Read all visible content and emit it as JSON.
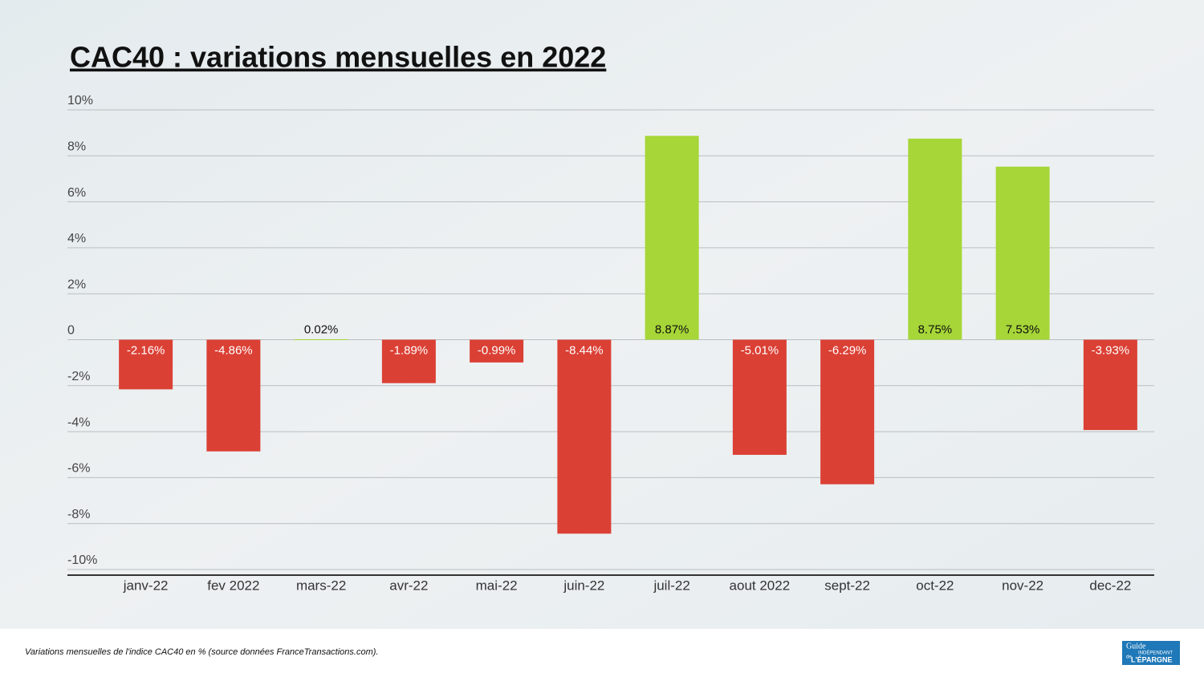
{
  "chart_data": {
    "type": "bar",
    "title": "CAC40 : variations mensuelles en 2022",
    "categories": [
      "janv-22",
      "fev 2022",
      "mars-22",
      "avr-22",
      "mai-22",
      "juin-22",
      "juil-22",
      "aout 2022",
      "sept-22",
      "oct-22",
      "nov-22",
      "dec-22"
    ],
    "values": [
      -2.16,
      -4.86,
      0.02,
      -1.89,
      -0.99,
      -8.44,
      8.87,
      -5.01,
      -6.29,
      8.75,
      7.53,
      -3.93
    ],
    "value_labels": [
      "-2.16%",
      "-4.86%",
      "0.02%",
      "-1.89%",
      "-0.99%",
      "-8.44%",
      "8.87%",
      "-5.01%",
      "-6.29%",
      "8.75%",
      "7.53%",
      "-3.93%"
    ],
    "positive_color": "#a6d637",
    "negative_color": "#db4035",
    "ylim": [
      -10,
      10
    ],
    "yticks": [
      {
        "value": -10,
        "label": "-10%"
      },
      {
        "value": -8,
        "label": "-8%"
      },
      {
        "value": -6,
        "label": "-6%"
      },
      {
        "value": -4,
        "label": "-4%"
      },
      {
        "value": -2,
        "label": "-2%"
      },
      0,
      {
        "value": 2,
        "label": "2%"
      },
      {
        "value": 4,
        "label": "4%"
      },
      {
        "value": 6,
        "label": "6%"
      },
      {
        "value": 8,
        "label": "8%"
      },
      {
        "value": 10,
        "label": "10%"
      }
    ],
    "grid": true
  },
  "footer": {
    "note": "Variations mensuelles de l'indice CAC40 en % (source données FranceTransactions.com).",
    "logo": [
      "Guide",
      "INDÉPENDANT",
      "de",
      "L'ÉPARGNE"
    ]
  }
}
